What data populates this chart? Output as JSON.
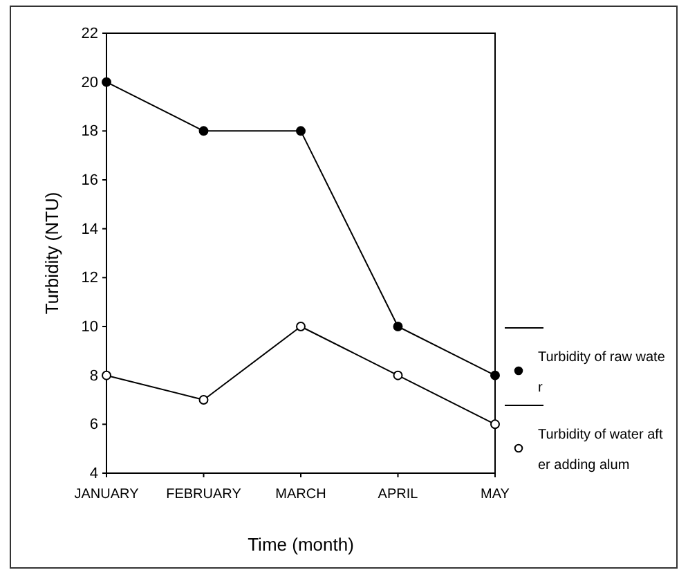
{
  "chart_data": {
    "type": "line",
    "xlabel": "Time (month)",
    "ylabel": "Turbidity (NTU)",
    "categories": [
      "JANUARY",
      "FEBRUARY",
      "MARCH",
      "APRIL",
      "MAY"
    ],
    "series": [
      {
        "name": "Turbidity of raw water",
        "color": "#000000",
        "values": [
          20,
          18,
          18,
          10,
          8
        ]
      },
      {
        "name": "Turbidity of water after adding alum",
        "color": "#000000",
        "values": [
          8,
          7,
          10,
          8,
          6
        ]
      }
    ],
    "ylim": [
      4,
      22
    ],
    "yticks": [
      4,
      6,
      8,
      10,
      12,
      14,
      16,
      18,
      20,
      22
    ],
    "grid": false,
    "legend": "right",
    "marker": "circle",
    "line_style": "solid"
  }
}
